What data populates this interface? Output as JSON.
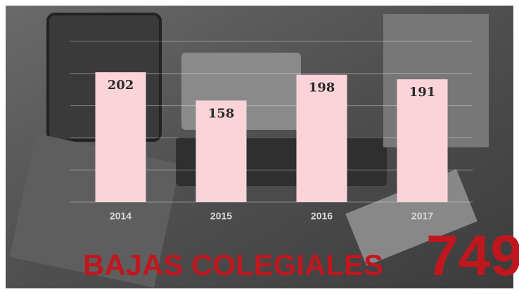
{
  "chart_data": {
    "type": "bar",
    "title": "BAJAS COLEGIALES",
    "total": 749,
    "categories": [
      "2014",
      "2015",
      "2016",
      "2017"
    ],
    "values": [
      202,
      158,
      198,
      191
    ],
    "color": "#fad4d9",
    "ylim": [
      0,
      250
    ],
    "yticks": [
      0,
      50,
      100,
      150,
      200,
      250
    ],
    "grid": true
  }
}
